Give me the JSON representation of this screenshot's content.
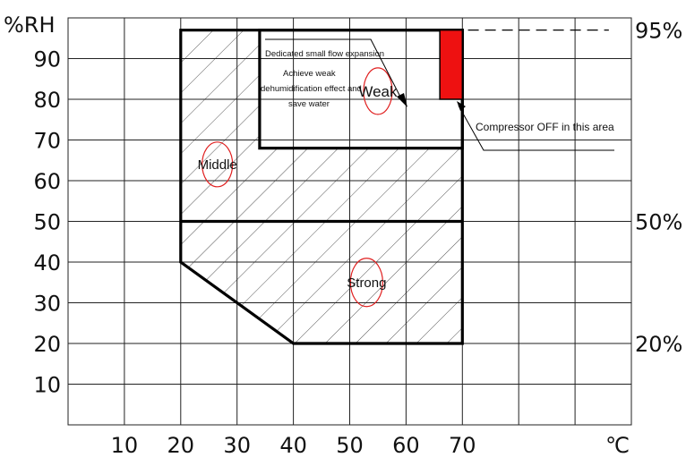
{
  "chart_data": {
    "type": "zone-diagram",
    "units": {
      "y": "%RH",
      "x": "℃"
    },
    "x_ticks": [
      10,
      20,
      30,
      40,
      50,
      60,
      70
    ],
    "y_ticks": [
      10,
      20,
      30,
      40,
      50,
      60,
      70,
      80,
      90
    ],
    "xlim": [
      0,
      100
    ],
    "ylim": [
      0,
      100
    ],
    "right_labels": [
      {
        "text": "95%",
        "value": 95
      },
      {
        "text": "50%",
        "value": 50
      },
      {
        "text": "20%",
        "value": 20
      }
    ],
    "zones": [
      {
        "name": "Weak",
        "label": "Weak",
        "label_at": [
          55,
          82
        ]
      },
      {
        "name": "Middle",
        "label": "Middle",
        "label_at": [
          26.5,
          64
        ]
      },
      {
        "name": "Strong",
        "label": "Strong",
        "label_at": [
          53,
          35
        ]
      }
    ],
    "compressor_off_box": {
      "x": [
        66,
        70
      ],
      "y": [
        80,
        97
      ],
      "color": "#ee1111"
    },
    "annotations": {
      "weak_title": "Dedicated small flow expansion",
      "weak_lines": [
        "Achieve weak",
        "dehumidification effect and",
        "save water"
      ],
      "compressor": "Compressor OFF in this area"
    },
    "colors": {
      "outline": "#000000",
      "circle": "#e02020",
      "hatch": "#555555"
    }
  }
}
